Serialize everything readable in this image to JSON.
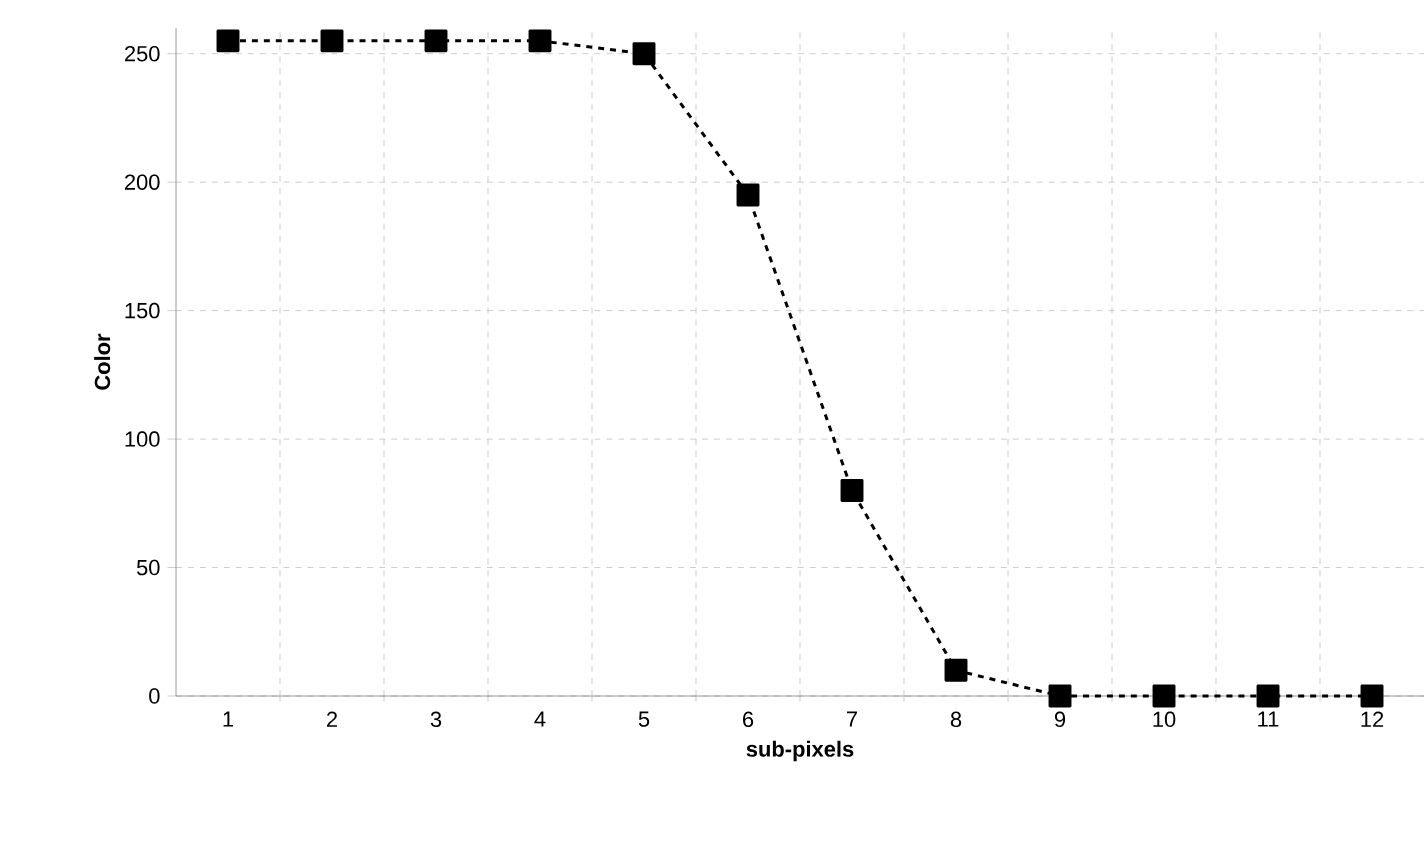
{
  "chart_data": {
    "type": "line",
    "xlabel": "sub-pixels",
    "ylabel": "Color",
    "categories": [
      "1",
      "2",
      "3",
      "4",
      "5",
      "6",
      "7",
      "8",
      "9",
      "10",
      "11",
      "12"
    ],
    "series": [
      {
        "color": "#000000",
        "values": [
          255,
          255,
          255,
          255,
          250,
          195,
          80,
          10,
          0,
          0,
          0,
          0
        ]
      }
    ],
    "ylim": [
      0,
      260
    ],
    "yticks": [
      0,
      50,
      100,
      150,
      200,
      250
    ],
    "grid": true,
    "marker": "square",
    "line_style": "dashed"
  }
}
